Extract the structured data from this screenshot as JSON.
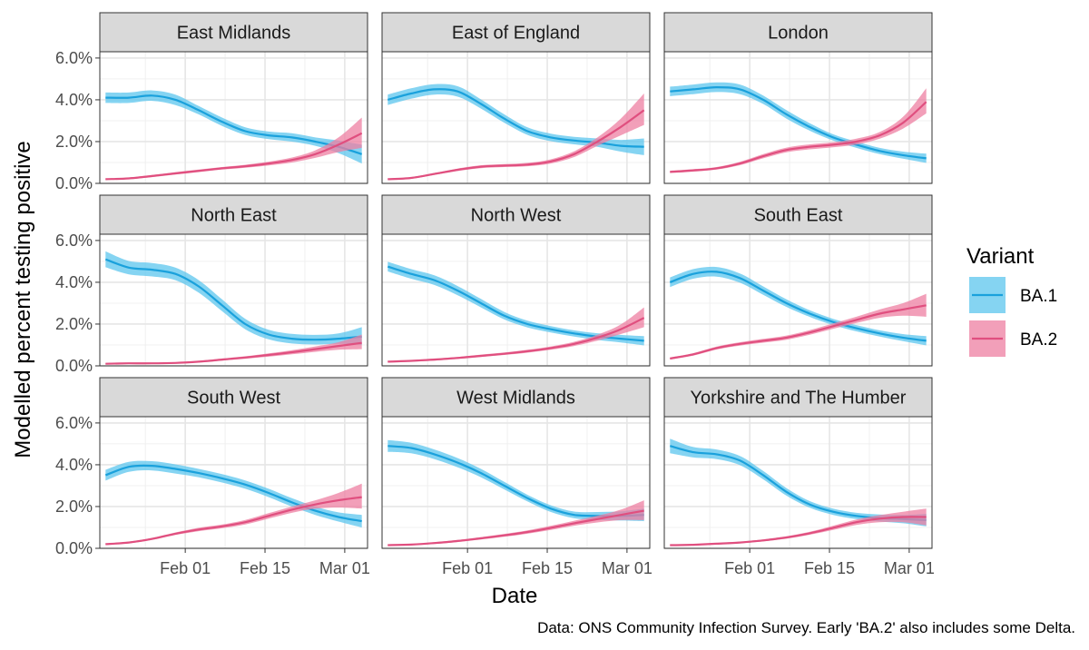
{
  "chart_data": {
    "type": "line",
    "xlabel": "Date",
    "ylabel": "Modelled percent testing positive",
    "caption": "Data: ONS Community Infection Survey. Early 'BA.2' also includes some Delta.",
    "legend_title": "Variant",
    "legend_placement": "right",
    "grid": true,
    "date_range": [
      "2022-01-18",
      "2022-03-04"
    ],
    "xlim": [
      "2022-01-17",
      "2022-03-05"
    ],
    "x_ticks": [
      {
        "date": "2022-02-01",
        "label": "Feb 01"
      },
      {
        "date": "2022-02-15",
        "label": "Feb 15"
      },
      {
        "date": "2022-03-01",
        "label": "Mar 01"
      }
    ],
    "ylim": [
      0,
      0.063
    ],
    "y_ticks": [
      {
        "value": 0.0,
        "label": "0.0%"
      },
      {
        "value": 0.02,
        "label": "2.0%"
      },
      {
        "value": 0.04,
        "label": "4.0%"
      },
      {
        "value": 0.06,
        "label": "6.0%"
      }
    ],
    "series": [
      {
        "name": "BA.1",
        "line_color": "#1aa1dc",
        "ribbon_color": "#5cc6ee"
      },
      {
        "name": "BA.2",
        "line_color": "#e04f7f",
        "ribbon_color": "#ee7fa2"
      }
    ],
    "panels": [
      {
        "region": "East Midlands",
        "ba1": {
          "mid": [
            4.1,
            4.1,
            4.2,
            4.0,
            3.5,
            2.95,
            2.5,
            2.3,
            2.2,
            2.0,
            1.75,
            1.4
          ],
          "lo": [
            3.85,
            3.85,
            3.95,
            3.75,
            3.3,
            2.75,
            2.32,
            2.12,
            2.0,
            1.8,
            1.45,
            0.95
          ],
          "hi": [
            4.35,
            4.35,
            4.45,
            4.25,
            3.7,
            3.15,
            2.68,
            2.48,
            2.4,
            2.2,
            2.05,
            1.85
          ]
        },
        "ba2": {
          "mid": [
            0.2,
            0.24,
            0.35,
            0.48,
            0.6,
            0.72,
            0.82,
            0.95,
            1.12,
            1.4,
            1.85,
            2.4
          ],
          "lo": [
            0.17,
            0.2,
            0.3,
            0.42,
            0.54,
            0.66,
            0.75,
            0.86,
            1.0,
            1.22,
            1.5,
            1.7
          ],
          "hi": [
            0.23,
            0.28,
            0.4,
            0.54,
            0.66,
            0.78,
            0.89,
            1.04,
            1.24,
            1.58,
            2.2,
            3.15
          ]
        }
      },
      {
        "region": "East of England",
        "ba1": {
          "mid": [
            4.0,
            4.3,
            4.5,
            4.4,
            3.8,
            3.1,
            2.5,
            2.2,
            2.05,
            1.95,
            1.8,
            1.75
          ],
          "lo": [
            3.75,
            4.05,
            4.25,
            4.15,
            3.58,
            2.9,
            2.32,
            2.02,
            1.87,
            1.75,
            1.52,
            1.35
          ],
          "hi": [
            4.25,
            4.55,
            4.75,
            4.65,
            4.02,
            3.3,
            2.68,
            2.38,
            2.23,
            2.15,
            2.08,
            2.15
          ]
        },
        "ba2": {
          "mid": [
            0.2,
            0.26,
            0.45,
            0.65,
            0.8,
            0.85,
            0.9,
            1.05,
            1.4,
            2.0,
            2.7,
            3.5
          ],
          "lo": [
            0.17,
            0.22,
            0.4,
            0.59,
            0.73,
            0.78,
            0.82,
            0.95,
            1.26,
            1.8,
            2.3,
            2.8
          ],
          "hi": [
            0.23,
            0.3,
            0.5,
            0.71,
            0.87,
            0.92,
            0.98,
            1.15,
            1.54,
            2.2,
            3.1,
            4.3
          ]
        }
      },
      {
        "region": "London",
        "ba1": {
          "mid": [
            4.4,
            4.5,
            4.6,
            4.5,
            4.0,
            3.3,
            2.7,
            2.2,
            1.85,
            1.55,
            1.35,
            1.2
          ],
          "lo": [
            4.17,
            4.27,
            4.37,
            4.27,
            3.8,
            3.1,
            2.52,
            2.05,
            1.7,
            1.4,
            1.18,
            0.98
          ],
          "hi": [
            4.63,
            4.73,
            4.83,
            4.73,
            4.2,
            3.5,
            2.88,
            2.35,
            2.0,
            1.7,
            1.52,
            1.42
          ]
        },
        "ba2": {
          "mid": [
            0.55,
            0.62,
            0.72,
            0.95,
            1.3,
            1.6,
            1.75,
            1.85,
            2.0,
            2.3,
            2.9,
            3.9
          ],
          "lo": [
            0.49,
            0.56,
            0.66,
            0.87,
            1.2,
            1.49,
            1.63,
            1.73,
            1.86,
            2.14,
            2.62,
            3.35
          ],
          "hi": [
            0.61,
            0.68,
            0.78,
            1.03,
            1.4,
            1.71,
            1.87,
            1.97,
            2.14,
            2.46,
            3.18,
            4.55
          ]
        }
      },
      {
        "region": "North East",
        "ba1": {
          "mid": [
            5.1,
            4.7,
            4.6,
            4.4,
            3.8,
            2.9,
            2.0,
            1.5,
            1.3,
            1.25,
            1.3,
            1.4
          ],
          "lo": [
            4.72,
            4.38,
            4.28,
            4.1,
            3.5,
            2.62,
            1.75,
            1.27,
            1.07,
            1.02,
            1.05,
            1.0
          ],
          "hi": [
            5.48,
            5.02,
            4.92,
            4.7,
            4.1,
            3.18,
            2.25,
            1.73,
            1.53,
            1.48,
            1.55,
            1.85
          ]
        },
        "ba2": {
          "mid": [
            0.1,
            0.12,
            0.12,
            0.14,
            0.2,
            0.3,
            0.4,
            0.52,
            0.65,
            0.8,
            0.95,
            1.1
          ],
          "lo": [
            0.08,
            0.09,
            0.09,
            0.11,
            0.16,
            0.25,
            0.34,
            0.44,
            0.55,
            0.67,
            0.77,
            0.8
          ],
          "hi": [
            0.12,
            0.15,
            0.15,
            0.17,
            0.24,
            0.35,
            0.46,
            0.6,
            0.75,
            0.93,
            1.13,
            1.5
          ]
        }
      },
      {
        "region": "North West",
        "ba1": {
          "mid": [
            4.75,
            4.4,
            4.1,
            3.6,
            3.0,
            2.4,
            2.0,
            1.75,
            1.55,
            1.4,
            1.3,
            1.2
          ],
          "lo": [
            4.52,
            4.17,
            3.87,
            3.38,
            2.8,
            2.22,
            1.84,
            1.6,
            1.4,
            1.24,
            1.12,
            0.98
          ],
          "hi": [
            4.98,
            4.63,
            4.33,
            3.82,
            3.2,
            2.58,
            2.16,
            1.9,
            1.7,
            1.56,
            1.48,
            1.42
          ]
        },
        "ba2": {
          "mid": [
            0.2,
            0.24,
            0.3,
            0.38,
            0.48,
            0.58,
            0.7,
            0.85,
            1.05,
            1.35,
            1.75,
            2.3
          ],
          "lo": [
            0.17,
            0.2,
            0.25,
            0.33,
            0.42,
            0.52,
            0.63,
            0.77,
            0.95,
            1.21,
            1.52,
            1.85
          ],
          "hi": [
            0.23,
            0.28,
            0.35,
            0.43,
            0.54,
            0.64,
            0.77,
            0.93,
            1.15,
            1.49,
            1.98,
            2.8
          ]
        }
      },
      {
        "region": "South East",
        "ba1": {
          "mid": [
            4.0,
            4.4,
            4.5,
            4.2,
            3.6,
            3.0,
            2.5,
            2.1,
            1.8,
            1.55,
            1.35,
            1.2
          ],
          "lo": [
            3.77,
            4.17,
            4.27,
            3.98,
            3.4,
            2.82,
            2.34,
            1.95,
            1.65,
            1.4,
            1.18,
            0.98
          ],
          "hi": [
            4.23,
            4.63,
            4.73,
            4.42,
            3.8,
            3.18,
            2.66,
            2.25,
            1.95,
            1.7,
            1.52,
            1.42
          ]
        },
        "ba2": {
          "mid": [
            0.35,
            0.55,
            0.85,
            1.05,
            1.2,
            1.35,
            1.6,
            1.9,
            2.2,
            2.5,
            2.7,
            2.9
          ],
          "lo": [
            0.3,
            0.49,
            0.78,
            0.97,
            1.11,
            1.25,
            1.49,
            1.77,
            2.05,
            2.3,
            2.4,
            2.35
          ],
          "hi": [
            0.4,
            0.61,
            0.92,
            1.13,
            1.29,
            1.45,
            1.71,
            2.03,
            2.35,
            2.7,
            3.0,
            3.45
          ]
        }
      },
      {
        "region": "South West",
        "ba1": {
          "mid": [
            3.5,
            3.9,
            3.95,
            3.8,
            3.6,
            3.35,
            3.05,
            2.65,
            2.2,
            1.8,
            1.5,
            1.3
          ],
          "lo": [
            3.24,
            3.66,
            3.73,
            3.58,
            3.4,
            3.15,
            2.85,
            2.45,
            2.0,
            1.6,
            1.28,
            1.0
          ],
          "hi": [
            3.76,
            4.14,
            4.17,
            4.02,
            3.8,
            3.55,
            3.25,
            2.85,
            2.4,
            2.0,
            1.72,
            1.6
          ]
        },
        "ba2": {
          "mid": [
            0.2,
            0.28,
            0.45,
            0.7,
            0.9,
            1.05,
            1.25,
            1.55,
            1.85,
            2.1,
            2.3,
            2.45
          ],
          "lo": [
            0.17,
            0.24,
            0.4,
            0.64,
            0.82,
            0.96,
            1.14,
            1.42,
            1.7,
            1.9,
            1.95,
            1.9
          ],
          "hi": [
            0.23,
            0.32,
            0.5,
            0.76,
            0.98,
            1.14,
            1.36,
            1.68,
            2.0,
            2.3,
            2.65,
            3.1
          ]
        }
      },
      {
        "region": "West Midlands",
        "ba1": {
          "mid": [
            4.9,
            4.8,
            4.5,
            4.1,
            3.6,
            3.0,
            2.4,
            1.9,
            1.6,
            1.55,
            1.55,
            1.6
          ],
          "lo": [
            4.62,
            4.55,
            4.27,
            3.88,
            3.4,
            2.82,
            2.24,
            1.74,
            1.44,
            1.36,
            1.33,
            1.3
          ],
          "hi": [
            5.18,
            5.05,
            4.73,
            4.32,
            3.8,
            3.18,
            2.56,
            2.06,
            1.76,
            1.74,
            1.77,
            1.9
          ]
        },
        "ba2": {
          "mid": [
            0.15,
            0.18,
            0.25,
            0.35,
            0.48,
            0.62,
            0.78,
            0.98,
            1.2,
            1.4,
            1.6,
            1.8
          ],
          "lo": [
            0.12,
            0.15,
            0.21,
            0.3,
            0.42,
            0.55,
            0.7,
            0.88,
            1.08,
            1.24,
            1.35,
            1.35
          ],
          "hi": [
            0.18,
            0.21,
            0.29,
            0.4,
            0.54,
            0.69,
            0.86,
            1.08,
            1.32,
            1.56,
            1.85,
            2.3
          ]
        }
      },
      {
        "region": "Yorkshire and The Humber",
        "ba1": {
          "mid": [
            4.9,
            4.6,
            4.5,
            4.2,
            3.5,
            2.7,
            2.1,
            1.75,
            1.55,
            1.45,
            1.4,
            1.35
          ],
          "lo": [
            4.55,
            4.35,
            4.27,
            3.98,
            3.3,
            2.52,
            1.94,
            1.6,
            1.4,
            1.28,
            1.2,
            1.05
          ],
          "hi": [
            5.25,
            4.85,
            4.73,
            4.42,
            3.7,
            2.88,
            2.26,
            1.9,
            1.7,
            1.62,
            1.6,
            1.65
          ]
        },
        "ba2": {
          "mid": [
            0.15,
            0.17,
            0.22,
            0.28,
            0.38,
            0.52,
            0.72,
            0.98,
            1.25,
            1.42,
            1.5,
            1.5
          ],
          "lo": [
            0.12,
            0.14,
            0.18,
            0.24,
            0.33,
            0.46,
            0.65,
            0.88,
            1.12,
            1.25,
            1.25,
            1.1
          ],
          "hi": [
            0.18,
            0.2,
            0.26,
            0.32,
            0.43,
            0.58,
            0.79,
            1.08,
            1.38,
            1.59,
            1.75,
            1.9
          ]
        }
      }
    ]
  }
}
